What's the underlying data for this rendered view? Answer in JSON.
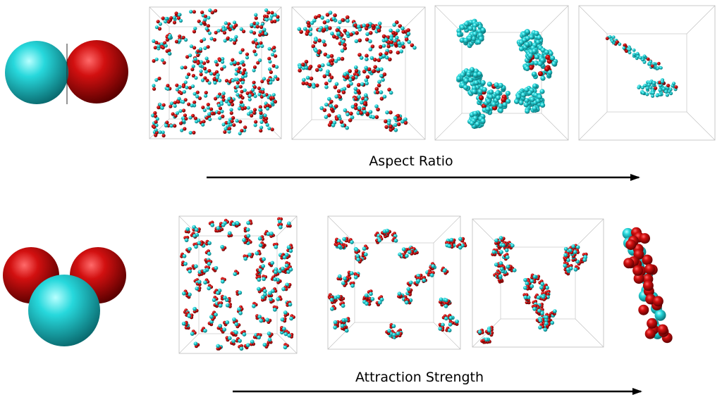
{
  "rows": [
    {
      "id": "aspect-ratio",
      "arrow_label": "Aspect Ratio",
      "molecule": "dimer",
      "panels": [
        {
          "state": "dispersed"
        },
        {
          "state": "stringy-network"
        },
        {
          "state": "spherical-micelles"
        },
        {
          "state": "elongated-aggregates"
        }
      ]
    },
    {
      "id": "attraction-strength",
      "arrow_label": "Attraction Strength",
      "molecule": "trimer",
      "panels": [
        {
          "state": "dispersed"
        },
        {
          "state": "small-clusters"
        },
        {
          "state": "branched-clusters"
        },
        {
          "state": "single-cluster-closeup"
        }
      ]
    }
  ],
  "colors": {
    "cyan": "#25d3d8",
    "red": "#d01414",
    "box_edge": "#bdbdbd",
    "arrow": "#000000"
  }
}
